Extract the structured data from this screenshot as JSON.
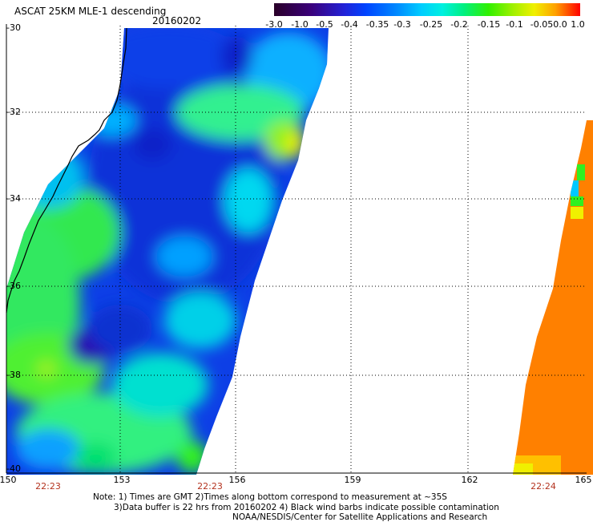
{
  "header": {
    "title": "ASCAT 25KM MLE-1 descending",
    "date": "20160202"
  },
  "colorbar": {
    "labels": [
      "-3.0",
      "-1.0",
      "-0.5",
      "-0.4",
      "-0.35",
      "-0.3",
      "-0.25",
      "-0.2",
      "-0.15",
      "-0.1",
      "-0.05",
      "0.0",
      "1.0"
    ],
    "colors": [
      "#2a0028",
      "#3a007a",
      "#2222d8",
      "#0044ff",
      "#0088ff",
      "#00ccff",
      "#00f0e0",
      "#00f080",
      "#30f000",
      "#a0f000",
      "#f0f000",
      "#ffa000",
      "#ff3000",
      "#ff0000"
    ]
  },
  "axes": {
    "lat_labels": [
      "-30",
      "-32",
      "-34",
      "-36",
      "-38",
      "-40"
    ],
    "lon_labels": [
      "150",
      "153",
      "156",
      "159",
      "162",
      "165"
    ]
  },
  "swath_times": [
    "22:23",
    "22:23",
    "22:24"
  ],
  "notes": {
    "line1": "Note: 1) Times are GMT 2)Times along bottom correspond to measurement at ~35S",
    "line2": "3)Data buffer is 22 hrs from 20160202 4) Black wind barbs indicate possible contamination",
    "line3": "NOAA/NESDIS/Center for Satellite Applications and Research"
  }
}
